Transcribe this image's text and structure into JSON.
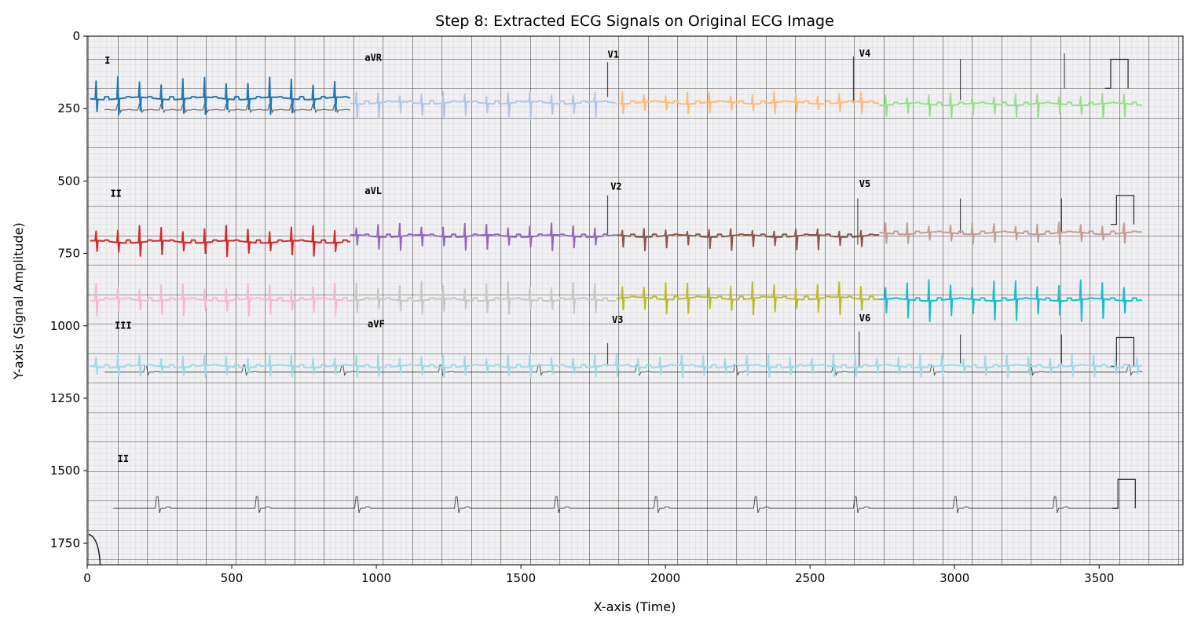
{
  "chart_data": {
    "type": "line",
    "title": "Step 8: Extracted ECG Signals on Original ECG Image",
    "xlabel": "X-axis (Time)",
    "ylabel": "Y-axis (Signal Amplitude)",
    "xlim": [
      0,
      3790
    ],
    "ylim": [
      1825,
      0
    ],
    "y_inverted": true,
    "x_ticks": [
      0,
      500,
      1000,
      1500,
      2000,
      2500,
      3000,
      3500
    ],
    "y_ticks": [
      0,
      250,
      500,
      750,
      1000,
      1250,
      1500,
      1750
    ],
    "grid": false,
    "background": "scanned ECG paper grid image",
    "printed_lead_labels": [
      {
        "text": "I",
        "x": 60,
        "y": 95
      },
      {
        "text": "aVR",
        "x": 960,
        "y": 85
      },
      {
        "text": "V1",
        "x": 1800,
        "y": 75
      },
      {
        "text": "V4",
        "x": 2670,
        "y": 70
      },
      {
        "text": "II",
        "x": 80,
        "y": 555
      },
      {
        "text": "aVL",
        "x": 960,
        "y": 545
      },
      {
        "text": "V2",
        "x": 1810,
        "y": 530
      },
      {
        "text": "V5",
        "x": 2670,
        "y": 520
      },
      {
        "text": "III",
        "x": 95,
        "y": 1010
      },
      {
        "text": "aVF",
        "x": 970,
        "y": 1005
      },
      {
        "text": "V3",
        "x": 1815,
        "y": 990
      },
      {
        "text": "V6",
        "x": 2670,
        "y": 985
      },
      {
        "text": "II",
        "x": 105,
        "y": 1470
      }
    ],
    "series": [
      {
        "color": "#1f77b4",
        "x_start": 10,
        "x_end": 910,
        "baseline": 215,
        "spike_up": 60,
        "spike_down": 45,
        "period": 75
      },
      {
        "color": "#aec7e8",
        "x_start": 910,
        "x_end": 1830,
        "baseline": 230,
        "spike_up": 30,
        "spike_down": 45,
        "period": 75
      },
      {
        "color": "#ffbb78",
        "x_start": 1830,
        "x_end": 2740,
        "baseline": 230,
        "spike_up": 30,
        "spike_down": 30,
        "period": 75
      },
      {
        "color": "#98df8a",
        "x_start": 2740,
        "x_end": 3650,
        "baseline": 235,
        "spike_up": 30,
        "spike_down": 40,
        "period": 75
      },
      {
        "color": "#d62728",
        "x_start": 10,
        "x_end": 910,
        "baseline": 710,
        "spike_up": 45,
        "spike_down": 40,
        "period": 75
      },
      {
        "color": "#9467bd",
        "x_start": 910,
        "x_end": 1830,
        "baseline": 690,
        "spike_up": 35,
        "spike_down": 40,
        "period": 75
      },
      {
        "color": "#8c564b",
        "x_start": 1830,
        "x_end": 2740,
        "baseline": 690,
        "spike_up": 20,
        "spike_down": 40,
        "period": 75
      },
      {
        "color": "#c49c94",
        "x_start": 2740,
        "x_end": 3650,
        "baseline": 680,
        "spike_up": 30,
        "spike_down": 30,
        "period": 75
      },
      {
        "color": "#f7b6d2",
        "x_start": 10,
        "x_end": 910,
        "baseline": 910,
        "spike_up": 45,
        "spike_down": 45,
        "period": 75
      },
      {
        "color": "#c7c7c7",
        "x_start": 910,
        "x_end": 1830,
        "baseline": 910,
        "spike_up": 50,
        "spike_down": 40,
        "period": 75
      },
      {
        "color": "#bcbd22",
        "x_start": 1830,
        "x_end": 2740,
        "baseline": 905,
        "spike_up": 45,
        "spike_down": 45,
        "period": 75
      },
      {
        "color": "#17becf",
        "x_start": 2740,
        "x_end": 3650,
        "baseline": 910,
        "spike_up": 55,
        "spike_down": 60,
        "period": 75
      },
      {
        "color": "#9edae5",
        "x_start": 10,
        "x_end": 3650,
        "baseline": 1140,
        "spike_up": 35,
        "spike_down": 30,
        "period": 75
      }
    ]
  }
}
